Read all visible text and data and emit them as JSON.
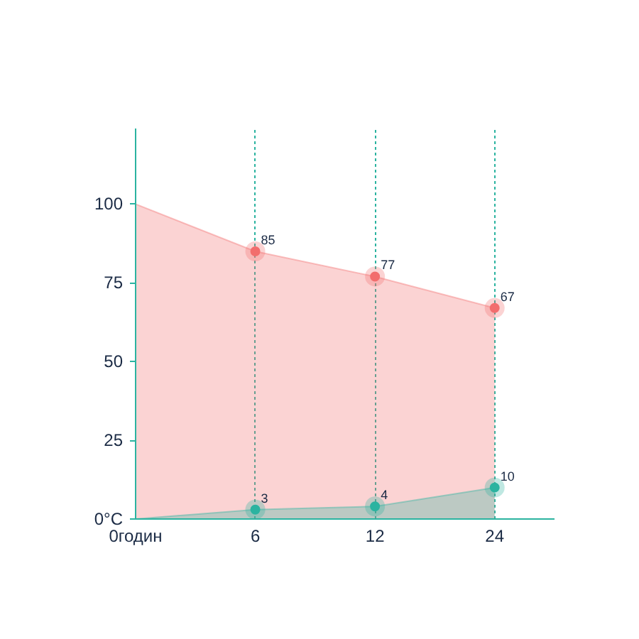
{
  "chart_data": {
    "type": "area",
    "categories": [
      "0годин",
      "6",
      "12",
      "24"
    ],
    "series": [
      {
        "color": "#f26d6d",
        "values": [
          100,
          85,
          77,
          67
        ],
        "value_labels": [
          null,
          "85",
          "77",
          "67"
        ]
      },
      {
        "color": "#2bb3a0",
        "values": [
          0,
          3,
          4,
          10
        ],
        "value_labels": [
          null,
          "3",
          "4",
          "10"
        ]
      }
    ],
    "ylim": [
      0,
      124
    ],
    "yticks": [
      {
        "value": 0,
        "label": "0°C"
      },
      25,
      50,
      75,
      100
    ],
    "grid": "x",
    "marker": "circle"
  }
}
